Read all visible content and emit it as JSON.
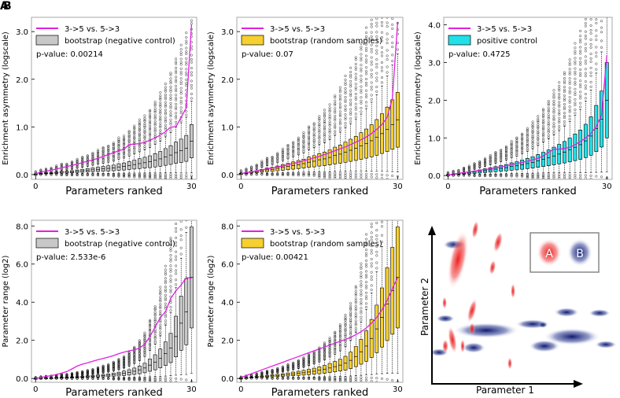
{
  "figure": {
    "panel_letters": [
      "A",
      "B"
    ],
    "colors": {
      "pink_line": "#e020e0",
      "gray_box": "#c8c8c8",
      "yellow_box": "#f5d030",
      "cyan_box": "#22e0e8",
      "red_blob": "#ee1c1c",
      "blue_blob": "#1c2a80",
      "frame": "#aaaaaa"
    }
  },
  "chart_data": [
    {
      "type": "box",
      "id": "p1",
      "xlabel": "Parameters ranked",
      "ylabel": "Enrichment asymmetry (logscale)",
      "ylim": [
        -0.1,
        3.3
      ],
      "xlim": [
        -0.8,
        31
      ],
      "yticks": [
        0.0,
        1.0,
        2.0,
        3.0
      ],
      "ytick_labels": [
        "0.0",
        "1.0",
        "2.0",
        "3.0"
      ],
      "xticks": [
        0,
        30
      ],
      "xtick_labels": [
        "0",
        "30"
      ],
      "legend": {
        "line_label": "3->5 vs. 5->3",
        "box_label": "bootstrap (negative control)"
      },
      "pvalue": "p-value: 0.00214",
      "box_color": "gray",
      "line": [
        0.02,
        0.05,
        0.07,
        0.09,
        0.12,
        0.14,
        0.17,
        0.19,
        0.22,
        0.25,
        0.28,
        0.31,
        0.34,
        0.38,
        0.42,
        0.46,
        0.5,
        0.53,
        0.63,
        0.64,
        0.65,
        0.68,
        0.72,
        0.77,
        0.83,
        0.9,
        1.0,
        1.0,
        1.2,
        1.4,
        3.15
      ],
      "medians": [
        0.01,
        0.02,
        0.03,
        0.03,
        0.04,
        0.05,
        0.05,
        0.06,
        0.07,
        0.08,
        0.09,
        0.1,
        0.11,
        0.12,
        0.13,
        0.14,
        0.16,
        0.17,
        0.19,
        0.21,
        0.23,
        0.25,
        0.27,
        0.3,
        0.33,
        0.37,
        0.41,
        0.46,
        0.5,
        0.55,
        0.7
      ]
    },
    {
      "type": "box",
      "id": "p2",
      "xlabel": "Parameters ranked",
      "ylabel": "Enrichment asymmetry (logscale)",
      "ylim": [
        -0.1,
        3.3
      ],
      "xlim": [
        -0.8,
        31
      ],
      "yticks": [
        0.0,
        1.0,
        2.0,
        3.0
      ],
      "ytick_labels": [
        "0.0",
        "1.0",
        "2.0",
        "3.0"
      ],
      "xticks": [
        0,
        30
      ],
      "xtick_labels": [
        "0",
        "30"
      ],
      "legend": {
        "line_label": "3->5 vs. 5->3",
        "box_label": "bootstrap (random samples)"
      },
      "pvalue": "p-value: 0.07",
      "box_color": "yellow",
      "line": [
        0.02,
        0.04,
        0.06,
        0.08,
        0.1,
        0.12,
        0.14,
        0.16,
        0.18,
        0.21,
        0.23,
        0.26,
        0.29,
        0.32,
        0.35,
        0.38,
        0.42,
        0.46,
        0.5,
        0.54,
        0.58,
        0.63,
        0.68,
        0.73,
        0.79,
        0.86,
        0.95,
        1.05,
        1.2,
        1.6,
        3.2
      ],
      "medians": [
        0.02,
        0.03,
        0.05,
        0.06,
        0.08,
        0.1,
        0.11,
        0.13,
        0.15,
        0.17,
        0.19,
        0.21,
        0.23,
        0.26,
        0.28,
        0.31,
        0.33,
        0.36,
        0.4,
        0.43,
        0.47,
        0.51,
        0.55,
        0.6,
        0.65,
        0.71,
        0.78,
        0.86,
        0.95,
        1.05,
        1.15
      ]
    },
    {
      "type": "box",
      "id": "p3",
      "xlabel": "Parameters ranked",
      "ylabel": "Enrichment asymmetry (logscale)",
      "ylim": [
        -0.1,
        4.2
      ],
      "xlim": [
        -0.8,
        31
      ],
      "yticks": [
        0.0,
        1.0,
        2.0,
        3.0,
        4.0
      ],
      "ytick_labels": [
        "0.0",
        "1.0",
        "2.0",
        "3.0",
        "4.0"
      ],
      "xticks": [
        0,
        30
      ],
      "xtick_labels": [
        "0",
        "30"
      ],
      "legend": {
        "line_label": "3->5 vs. 5->3",
        "box_label": "positive control"
      },
      "pvalue": "p-value: 0.4725",
      "box_color": "cyan",
      "line": [
        0.02,
        0.04,
        0.06,
        0.08,
        0.1,
        0.12,
        0.14,
        0.16,
        0.18,
        0.21,
        0.23,
        0.26,
        0.29,
        0.32,
        0.35,
        0.38,
        0.42,
        0.46,
        0.52,
        0.62,
        0.7,
        0.7,
        0.72,
        0.75,
        0.82,
        0.9,
        1.0,
        1.12,
        1.3,
        1.6,
        3.2
      ],
      "medians": [
        0.02,
        0.03,
        0.04,
        0.06,
        0.07,
        0.09,
        0.11,
        0.13,
        0.15,
        0.17,
        0.19,
        0.21,
        0.24,
        0.26,
        0.29,
        0.32,
        0.35,
        0.39,
        0.43,
        0.47,
        0.52,
        0.57,
        0.62,
        0.68,
        0.75,
        0.82,
        0.92,
        1.05,
        1.25,
        1.5,
        2.0
      ]
    },
    {
      "type": "box",
      "id": "p4",
      "xlabel": "Parameters ranked",
      "ylabel": "Parameter range (log2)",
      "ylim": [
        -0.2,
        8.3
      ],
      "xlim": [
        -0.8,
        31
      ],
      "yticks": [
        0.0,
        2.0,
        4.0,
        6.0,
        8.0
      ],
      "ytick_labels": [
        "0.0",
        "2.0",
        "4.0",
        "6.0",
        "8.0"
      ],
      "xticks": [
        0,
        30
      ],
      "xtick_labels": [
        "0",
        "30"
      ],
      "legend": {
        "line_label": "3->5 vs. 5->3",
        "box_label": "bootstrap (negative control)"
      },
      "pvalue": "p-value: 2.533e-6",
      "box_color": "gray",
      "line": [
        0.02,
        0.05,
        0.1,
        0.15,
        0.2,
        0.28,
        0.36,
        0.5,
        0.65,
        0.75,
        0.82,
        0.9,
        0.98,
        1.05,
        1.12,
        1.2,
        1.3,
        1.38,
        1.45,
        1.5,
        1.6,
        1.8,
        2.2,
        2.7,
        3.2,
        3.5,
        4.2,
        4.6,
        4.9,
        5.3,
        5.25
      ],
      "medians": [
        0.01,
        0.02,
        0.03,
        0.03,
        0.04,
        0.05,
        0.05,
        0.06,
        0.07,
        0.08,
        0.1,
        0.11,
        0.13,
        0.15,
        0.17,
        0.2,
        0.23,
        0.27,
        0.32,
        0.38,
        0.45,
        0.55,
        0.7,
        0.85,
        1.05,
        1.3,
        1.6,
        2.2,
        2.9,
        3.5,
        5.3
      ]
    },
    {
      "type": "box",
      "id": "p5",
      "xlabel": "Parameters ranked",
      "ylabel": "Parameter range (log2)",
      "ylim": [
        -0.2,
        8.3
      ],
      "xlim": [
        -0.8,
        31
      ],
      "yticks": [
        0.0,
        2.0,
        4.0,
        6.0,
        8.0
      ],
      "ytick_labels": [
        "0.0",
        "2.0",
        "4.0",
        "6.0",
        "8.0"
      ],
      "xticks": [
        0,
        30
      ],
      "xtick_labels": [
        "0",
        "30"
      ],
      "legend": {
        "line_label": "3->5 vs. 5->3",
        "box_label": "bootstrap (random samples)"
      },
      "pvalue": "p-value: 0.00421",
      "box_color": "yellow",
      "line": [
        0.05,
        0.15,
        0.25,
        0.35,
        0.45,
        0.55,
        0.65,
        0.75,
        0.85,
        0.95,
        1.05,
        1.15,
        1.25,
        1.35,
        1.45,
        1.55,
        1.65,
        1.75,
        1.85,
        1.95,
        2.05,
        2.15,
        2.3,
        2.45,
        2.65,
        2.9,
        3.2,
        3.6,
        4.1,
        4.7,
        5.3
      ],
      "medians": [
        0.02,
        0.04,
        0.06,
        0.08,
        0.1,
        0.12,
        0.14,
        0.16,
        0.18,
        0.21,
        0.24,
        0.27,
        0.3,
        0.34,
        0.38,
        0.43,
        0.48,
        0.55,
        0.62,
        0.7,
        0.8,
        0.95,
        1.15,
        1.4,
        1.7,
        2.1,
        2.6,
        3.2,
        3.9,
        4.6,
        5.3
      ]
    }
  ],
  "schematic": {
    "xlabel": "Parameter 1",
    "ylabel": "Parameter 2",
    "legend_a": "A",
    "legend_b": "B"
  }
}
